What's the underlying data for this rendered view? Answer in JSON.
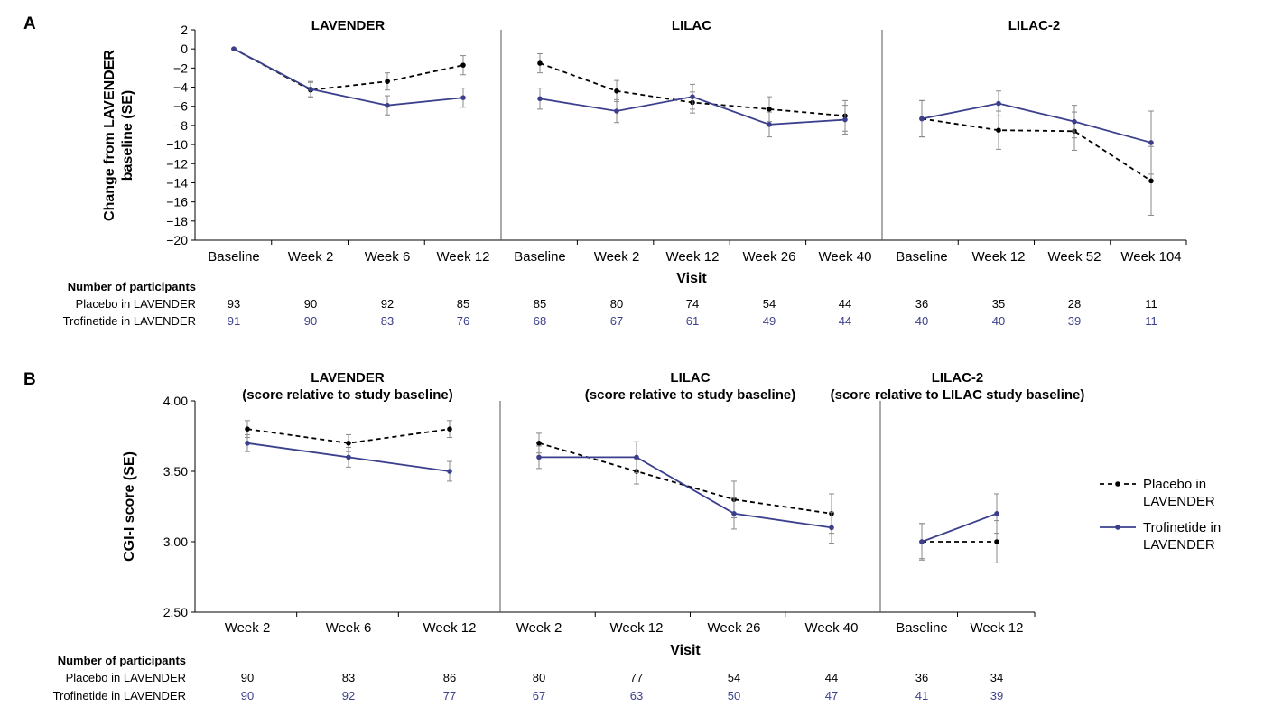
{
  "colors": {
    "placebo": "#000000",
    "trofinetide": "#3b3f8c",
    "axis": "#000000",
    "error": "#888888"
  },
  "legend": {
    "placement": "right of panel B",
    "placebo": [
      "Placebo in",
      "LAVENDER"
    ],
    "trofinetide": [
      "Trofinetide in",
      "LAVENDER"
    ]
  },
  "panelA": {
    "letter": "A",
    "ylabel": [
      "Change from LAVENDER",
      "baseline (SE)"
    ],
    "xlabel": "Visit",
    "participants_header": "Number of participants",
    "row_labels": [
      "Placebo in LAVENDER",
      "Trofinetide in LAVENDER"
    ]
  },
  "panelB": {
    "letter": "B",
    "ylabel": "CGI-I score (SE)",
    "xlabel": "Visit",
    "participants_header": "Number of participants",
    "row_labels": [
      "Placebo in LAVENDER",
      "Trofinetide in LAVENDER"
    ]
  },
  "chart_data": [
    {
      "type": "line",
      "panel": "A",
      "ylim": [
        -20,
        2
      ],
      "yticks": [
        2,
        0,
        -2,
        -4,
        -6,
        -8,
        -10,
        -12,
        -14,
        -16,
        -18,
        -20
      ],
      "segments": [
        {
          "title": "LAVENDER",
          "categories": [
            "Baseline",
            "Week 2",
            "Week 6",
            "Week 12"
          ],
          "series": [
            {
              "name": "Placebo in LAVENDER",
              "values": [
                0,
                -4.3,
                -3.4,
                -1.7
              ],
              "err": [
                0,
                0.8,
                0.9,
                1.0
              ],
              "n": [
                93,
                90,
                92,
                85
              ]
            },
            {
              "name": "Trofinetide in LAVENDER",
              "values": [
                0,
                -4.2,
                -5.9,
                -5.1
              ],
              "err": [
                0,
                0.8,
                1.0,
                1.0
              ],
              "n": [
                91,
                90,
                83,
                76
              ]
            }
          ]
        },
        {
          "title": "LILAC",
          "categories": [
            "Baseline",
            "Week 2",
            "Week 12",
            "Week 26",
            "Week 40"
          ],
          "series": [
            {
              "name": "Placebo in LAVENDER",
              "values": [
                -1.5,
                -4.4,
                -5.6,
                -6.3,
                -7.0
              ],
              "err": [
                1.0,
                1.1,
                1.1,
                1.3,
                1.6
              ],
              "n": [
                85,
                80,
                74,
                54,
                44
              ]
            },
            {
              "name": "Trofinetide in LAVENDER",
              "values": [
                -5.2,
                -6.5,
                -5.0,
                -7.9,
                -7.4
              ],
              "err": [
                1.1,
                1.2,
                1.3,
                1.3,
                1.5
              ],
              "n": [
                68,
                67,
                61,
                49,
                44
              ]
            }
          ]
        },
        {
          "title": "LILAC-2",
          "categories": [
            "Baseline",
            "Week 12",
            "Week 52",
            "Week 104"
          ],
          "series": [
            {
              "name": "Placebo in LAVENDER",
              "values": [
                -7.3,
                -8.5,
                -8.6,
                -13.8
              ],
              "err": [
                1.9,
                2.0,
                2.0,
                3.6
              ],
              "n": [
                36,
                35,
                28,
                11
              ]
            },
            {
              "name": "Trofinetide in LAVENDER",
              "values": [
                -7.3,
                -5.7,
                -7.6,
                -9.8
              ],
              "err": [
                1.9,
                1.3,
                1.7,
                3.3
              ],
              "n": [
                40,
                40,
                39,
                11
              ]
            }
          ]
        }
      ]
    },
    {
      "type": "line",
      "panel": "B",
      "ylim": [
        2.5,
        4.0
      ],
      "yticks": [
        "4.00",
        "3.50",
        "3.00",
        "2.50"
      ],
      "segments": [
        {
          "title": [
            "LAVENDER",
            "(score relative to study baseline)"
          ],
          "categories": [
            "Week 2",
            "Week 6",
            "Week 12"
          ],
          "series": [
            {
              "name": "Placebo in LAVENDER",
              "values": [
                3.8,
                3.7,
                3.8
              ],
              "err": [
                0.06,
                0.06,
                0.06
              ],
              "n": [
                90,
                83,
                86
              ]
            },
            {
              "name": "Trofinetide in LAVENDER",
              "values": [
                3.7,
                3.6,
                3.5
              ],
              "err": [
                0.06,
                0.07,
                0.07
              ],
              "n": [
                90,
                92,
                77
              ]
            }
          ]
        },
        {
          "title": [
            "LILAC",
            "(score relative to study baseline)"
          ],
          "categories": [
            "Week 2",
            "Week 12",
            "Week 26",
            "Week 40"
          ],
          "series": [
            {
              "name": "Placebo in LAVENDER",
              "values": [
                3.7,
                3.5,
                3.3,
                3.2
              ],
              "err": [
                0.07,
                0.09,
                0.13,
                0.14
              ],
              "n": [
                80,
                77,
                54,
                44
              ]
            },
            {
              "name": "Trofinetide in LAVENDER",
              "values": [
                3.6,
                3.6,
                3.2,
                3.1
              ],
              "err": [
                0.08,
                0.11,
                0.11,
                0.11
              ],
              "n": [
                67,
                63,
                50,
                47
              ]
            }
          ]
        },
        {
          "title": [
            "LILAC-2",
            "(score relative to LILAC study baseline)"
          ],
          "categories": [
            "Baseline",
            "Week 12"
          ],
          "series": [
            {
              "name": "Placebo in LAVENDER",
              "values": [
                3.0,
                3.0
              ],
              "err": [
                0.13,
                0.15
              ],
              "n": [
                36,
                34
              ]
            },
            {
              "name": "Trofinetide in LAVENDER",
              "values": [
                3.0,
                3.2
              ],
              "err": [
                0.12,
                0.14
              ],
              "n": [
                41,
                39
              ]
            }
          ]
        }
      ]
    }
  ]
}
